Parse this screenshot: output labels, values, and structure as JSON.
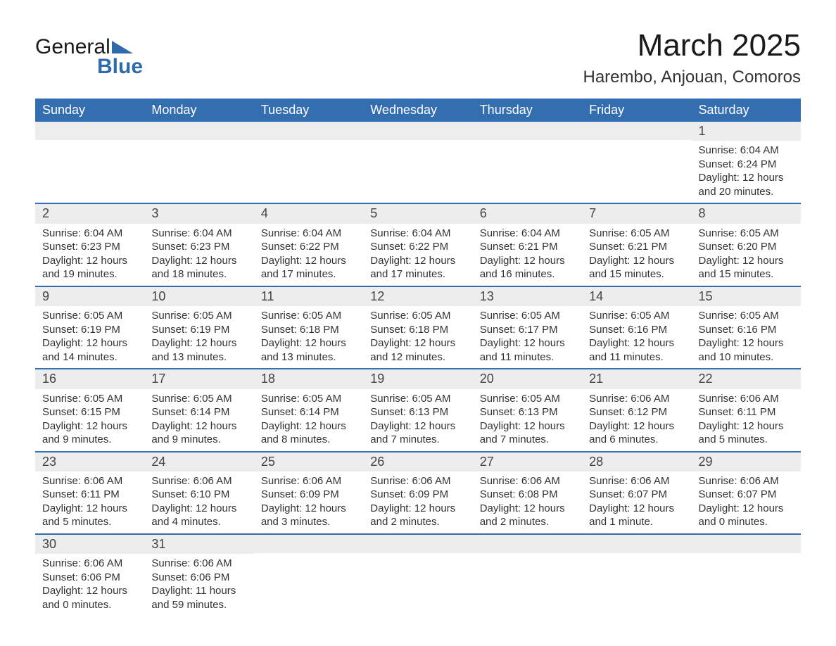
{
  "logo": {
    "word1": "General",
    "word2": "Blue",
    "accent_color": "#2f6aab"
  },
  "title": "March 2025",
  "location": "Harembo, Anjouan, Comoros",
  "colors": {
    "header_bg": "#336eb0",
    "header_text": "#ffffff",
    "daynum_bg": "#ededed",
    "body_text": "#333333",
    "row_divider": "#336eb0",
    "page_bg": "#ffffff"
  },
  "typography": {
    "title_fontsize": 44,
    "location_fontsize": 24,
    "weekday_fontsize": 18,
    "daynum_fontsize": 18,
    "body_fontsize": 15
  },
  "weekday_labels": [
    "Sunday",
    "Monday",
    "Tuesday",
    "Wednesday",
    "Thursday",
    "Friday",
    "Saturday"
  ],
  "weeks": [
    [
      null,
      null,
      null,
      null,
      null,
      null,
      {
        "n": "1",
        "sunrise": "Sunrise: 6:04 AM",
        "sunset": "Sunset: 6:24 PM",
        "daylight1": "Daylight: 12 hours",
        "daylight2": "and 20 minutes."
      }
    ],
    [
      {
        "n": "2",
        "sunrise": "Sunrise: 6:04 AM",
        "sunset": "Sunset: 6:23 PM",
        "daylight1": "Daylight: 12 hours",
        "daylight2": "and 19 minutes."
      },
      {
        "n": "3",
        "sunrise": "Sunrise: 6:04 AM",
        "sunset": "Sunset: 6:23 PM",
        "daylight1": "Daylight: 12 hours",
        "daylight2": "and 18 minutes."
      },
      {
        "n": "4",
        "sunrise": "Sunrise: 6:04 AM",
        "sunset": "Sunset: 6:22 PM",
        "daylight1": "Daylight: 12 hours",
        "daylight2": "and 17 minutes."
      },
      {
        "n": "5",
        "sunrise": "Sunrise: 6:04 AM",
        "sunset": "Sunset: 6:22 PM",
        "daylight1": "Daylight: 12 hours",
        "daylight2": "and 17 minutes."
      },
      {
        "n": "6",
        "sunrise": "Sunrise: 6:04 AM",
        "sunset": "Sunset: 6:21 PM",
        "daylight1": "Daylight: 12 hours",
        "daylight2": "and 16 minutes."
      },
      {
        "n": "7",
        "sunrise": "Sunrise: 6:05 AM",
        "sunset": "Sunset: 6:21 PM",
        "daylight1": "Daylight: 12 hours",
        "daylight2": "and 15 minutes."
      },
      {
        "n": "8",
        "sunrise": "Sunrise: 6:05 AM",
        "sunset": "Sunset: 6:20 PM",
        "daylight1": "Daylight: 12 hours",
        "daylight2": "and 15 minutes."
      }
    ],
    [
      {
        "n": "9",
        "sunrise": "Sunrise: 6:05 AM",
        "sunset": "Sunset: 6:19 PM",
        "daylight1": "Daylight: 12 hours",
        "daylight2": "and 14 minutes."
      },
      {
        "n": "10",
        "sunrise": "Sunrise: 6:05 AM",
        "sunset": "Sunset: 6:19 PM",
        "daylight1": "Daylight: 12 hours",
        "daylight2": "and 13 minutes."
      },
      {
        "n": "11",
        "sunrise": "Sunrise: 6:05 AM",
        "sunset": "Sunset: 6:18 PM",
        "daylight1": "Daylight: 12 hours",
        "daylight2": "and 13 minutes."
      },
      {
        "n": "12",
        "sunrise": "Sunrise: 6:05 AM",
        "sunset": "Sunset: 6:18 PM",
        "daylight1": "Daylight: 12 hours",
        "daylight2": "and 12 minutes."
      },
      {
        "n": "13",
        "sunrise": "Sunrise: 6:05 AM",
        "sunset": "Sunset: 6:17 PM",
        "daylight1": "Daylight: 12 hours",
        "daylight2": "and 11 minutes."
      },
      {
        "n": "14",
        "sunrise": "Sunrise: 6:05 AM",
        "sunset": "Sunset: 6:16 PM",
        "daylight1": "Daylight: 12 hours",
        "daylight2": "and 11 minutes."
      },
      {
        "n": "15",
        "sunrise": "Sunrise: 6:05 AM",
        "sunset": "Sunset: 6:16 PM",
        "daylight1": "Daylight: 12 hours",
        "daylight2": "and 10 minutes."
      }
    ],
    [
      {
        "n": "16",
        "sunrise": "Sunrise: 6:05 AM",
        "sunset": "Sunset: 6:15 PM",
        "daylight1": "Daylight: 12 hours",
        "daylight2": "and 9 minutes."
      },
      {
        "n": "17",
        "sunrise": "Sunrise: 6:05 AM",
        "sunset": "Sunset: 6:14 PM",
        "daylight1": "Daylight: 12 hours",
        "daylight2": "and 9 minutes."
      },
      {
        "n": "18",
        "sunrise": "Sunrise: 6:05 AM",
        "sunset": "Sunset: 6:14 PM",
        "daylight1": "Daylight: 12 hours",
        "daylight2": "and 8 minutes."
      },
      {
        "n": "19",
        "sunrise": "Sunrise: 6:05 AM",
        "sunset": "Sunset: 6:13 PM",
        "daylight1": "Daylight: 12 hours",
        "daylight2": "and 7 minutes."
      },
      {
        "n": "20",
        "sunrise": "Sunrise: 6:05 AM",
        "sunset": "Sunset: 6:13 PM",
        "daylight1": "Daylight: 12 hours",
        "daylight2": "and 7 minutes."
      },
      {
        "n": "21",
        "sunrise": "Sunrise: 6:06 AM",
        "sunset": "Sunset: 6:12 PM",
        "daylight1": "Daylight: 12 hours",
        "daylight2": "and 6 minutes."
      },
      {
        "n": "22",
        "sunrise": "Sunrise: 6:06 AM",
        "sunset": "Sunset: 6:11 PM",
        "daylight1": "Daylight: 12 hours",
        "daylight2": "and 5 minutes."
      }
    ],
    [
      {
        "n": "23",
        "sunrise": "Sunrise: 6:06 AM",
        "sunset": "Sunset: 6:11 PM",
        "daylight1": "Daylight: 12 hours",
        "daylight2": "and 5 minutes."
      },
      {
        "n": "24",
        "sunrise": "Sunrise: 6:06 AM",
        "sunset": "Sunset: 6:10 PM",
        "daylight1": "Daylight: 12 hours",
        "daylight2": "and 4 minutes."
      },
      {
        "n": "25",
        "sunrise": "Sunrise: 6:06 AM",
        "sunset": "Sunset: 6:09 PM",
        "daylight1": "Daylight: 12 hours",
        "daylight2": "and 3 minutes."
      },
      {
        "n": "26",
        "sunrise": "Sunrise: 6:06 AM",
        "sunset": "Sunset: 6:09 PM",
        "daylight1": "Daylight: 12 hours",
        "daylight2": "and 2 minutes."
      },
      {
        "n": "27",
        "sunrise": "Sunrise: 6:06 AM",
        "sunset": "Sunset: 6:08 PM",
        "daylight1": "Daylight: 12 hours",
        "daylight2": "and 2 minutes."
      },
      {
        "n": "28",
        "sunrise": "Sunrise: 6:06 AM",
        "sunset": "Sunset: 6:07 PM",
        "daylight1": "Daylight: 12 hours",
        "daylight2": "and 1 minute."
      },
      {
        "n": "29",
        "sunrise": "Sunrise: 6:06 AM",
        "sunset": "Sunset: 6:07 PM",
        "daylight1": "Daylight: 12 hours",
        "daylight2": "and 0 minutes."
      }
    ],
    [
      {
        "n": "30",
        "sunrise": "Sunrise: 6:06 AM",
        "sunset": "Sunset: 6:06 PM",
        "daylight1": "Daylight: 12 hours",
        "daylight2": "and 0 minutes."
      },
      {
        "n": "31",
        "sunrise": "Sunrise: 6:06 AM",
        "sunset": "Sunset: 6:06 PM",
        "daylight1": "Daylight: 11 hours",
        "daylight2": "and 59 minutes."
      },
      null,
      null,
      null,
      null,
      null
    ]
  ]
}
